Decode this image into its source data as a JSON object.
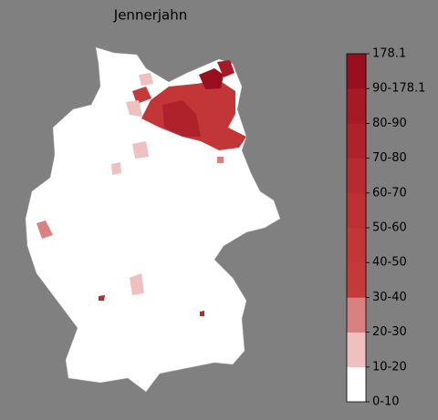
{
  "title": "Jennerjahn",
  "colorbar": {
    "labels": [
      "0-10",
      "10-20",
      "20-30",
      "30-40",
      "40-50",
      "50-60",
      "60-70",
      "70-80",
      "80-90",
      "90-178.1",
      "178.1"
    ],
    "colors": [
      "#ffffff",
      "#f0c0c0",
      "#d98080",
      "#c43a3a",
      "#c23638",
      "#be3034",
      "#b82a30",
      "#b0222b",
      "#a61a26",
      "#990f20"
    ]
  }
}
